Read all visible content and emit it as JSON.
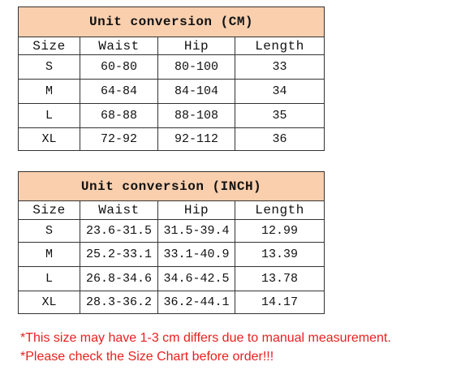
{
  "tables": [
    {
      "title": "Unit conversion (CM)",
      "header": [
        "Size",
        "Waist",
        "Hip",
        "Length"
      ],
      "rows": [
        [
          "S",
          "60-80",
          "80-100",
          33
        ],
        [
          "M",
          "64-84",
          "84-104",
          34
        ],
        [
          "L",
          "68-88",
          "88-108",
          35
        ],
        [
          "XL",
          "72-92",
          "92-112",
          36
        ]
      ]
    },
    {
      "title": "Unit conversion (INCH)",
      "header": [
        "Size",
        "Waist",
        "Hip",
        "Length"
      ],
      "rows": [
        [
          "S",
          "23.6-31.5",
          "31.5-39.4",
          12.99
        ],
        [
          "M",
          "25.2-33.1",
          "33.1-40.9",
          13.39
        ],
        [
          "L",
          "26.8-34.6",
          "34.6-42.5",
          13.78
        ],
        [
          "XL",
          "28.3-36.2",
          "36.2-44.1",
          14.17
        ]
      ]
    }
  ],
  "notes": [
    "*This size may have 1-3 cm differs due to manual measurement.",
    "*Please check the Size Chart before order!!!"
  ]
}
